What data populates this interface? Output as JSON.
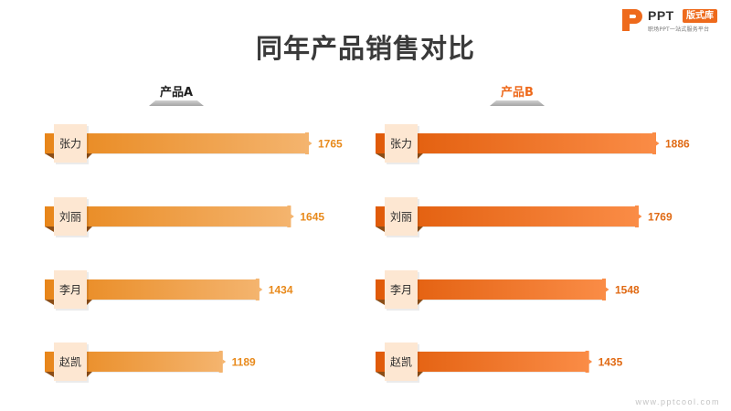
{
  "logo": {
    "brand": "PPT",
    "badge": "版式库",
    "tagline": "职场PPT一站式服务平台",
    "accent": "#ee6a1c"
  },
  "watermark": "www.pptcool.com",
  "chart_data": {
    "type": "bar",
    "title": "同年产品销售对比",
    "orientation": "horizontal",
    "categories": [
      "张力",
      "刘丽",
      "李月",
      "赵凯"
    ],
    "xlim": [
      0,
      2000
    ],
    "series": [
      {
        "name": "产品A",
        "values": [
          1765,
          1645,
          1434,
          1189
        ],
        "color": "#e8861a",
        "color_light": "#f4b46e",
        "label_color": "#e88a1c"
      },
      {
        "name": "产品B",
        "values": [
          1886,
          1769,
          1548,
          1435
        ],
        "color": "#e05a08",
        "color_light": "#fa8c46",
        "label_color": "#e06a14"
      }
    ]
  }
}
